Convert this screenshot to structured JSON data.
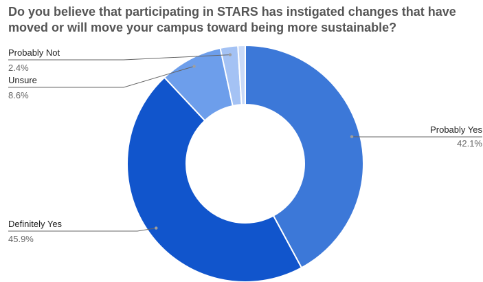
{
  "chart_data": {
    "type": "pie",
    "title": "Do you believe that participating in STARS has instigated changes that have moved or will move your campus toward being more sustainable?",
    "donut": true,
    "slices": [
      {
        "label": "Probably Yes",
        "value": 42.1,
        "display": "42.1%",
        "color": "#3c78d8"
      },
      {
        "label": "Definitely Yes",
        "value": 45.9,
        "display": "45.9%",
        "color": "#1155cc"
      },
      {
        "label": "Unsure",
        "value": 8.6,
        "display": "8.6%",
        "color": "#6d9eeb"
      },
      {
        "label": "Probably Not",
        "value": 2.4,
        "display": "2.4%",
        "color": "#a4c2f4"
      },
      {
        "label": "",
        "value": 1.0,
        "display": "",
        "color": "#c9daf8"
      }
    ]
  }
}
